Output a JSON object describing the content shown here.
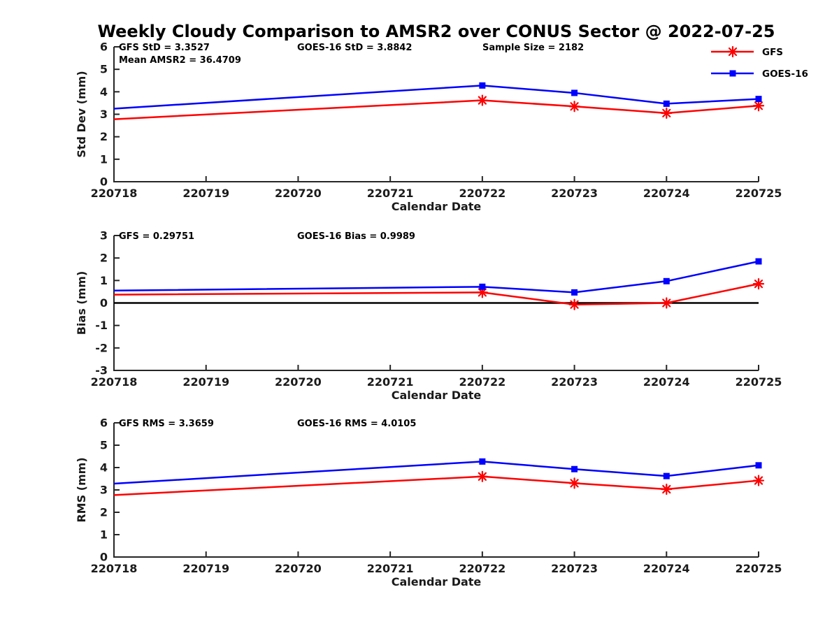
{
  "title": "Weekly Cloudy Comparison to AMSR2 over CONUS Sector @ 2022-07-25",
  "colors": {
    "gfs": "#ff0000",
    "goes16": "#0000ff",
    "axis": "#262626",
    "tick_text": "#1a1a1a",
    "annotation_text": "#000000",
    "zero_line": "#000000",
    "background": "#ffffff"
  },
  "legend": {
    "items": [
      {
        "label": "GFS",
        "color": "#ff0000",
        "marker": "asterisk"
      },
      {
        "label": "GOES-16",
        "color": "#0000ff",
        "marker": "square"
      }
    ]
  },
  "x_axis": {
    "label": "Calendar Date",
    "tick_labels": [
      "220718",
      "220719",
      "220720",
      "220721",
      "220722",
      "220723",
      "220724",
      "220725"
    ]
  },
  "chart_data": [
    {
      "type": "line",
      "ylabel": "Std Dev (mm)",
      "xlabel": "Calendar Date",
      "ylim": [
        0,
        6
      ],
      "yticks": [
        0,
        1,
        2,
        3,
        4,
        5,
        6
      ],
      "x": [
        "220718",
        "220722",
        "220723",
        "220724",
        "220725"
      ],
      "series": [
        {
          "name": "GFS",
          "color": "#ff0000",
          "marker": "asterisk",
          "values": [
            2.78,
            3.62,
            3.35,
            3.05,
            3.38
          ]
        },
        {
          "name": "GOES-16",
          "color": "#0000ff",
          "marker": "square",
          "values": [
            3.25,
            4.28,
            3.95,
            3.47,
            3.68
          ]
        }
      ],
      "annotations": [
        {
          "text": "GFS StD = 3.3527",
          "col": 0,
          "row": 0
        },
        {
          "text": "Mean AMSR2 = 36.4709",
          "col": 0,
          "row": 1
        },
        {
          "text": "GOES-16 StD = 3.8842",
          "col": 1,
          "row": 0
        },
        {
          "text": "Sample Size = 2182",
          "col": 2,
          "row": 0
        }
      ],
      "zero_line": false,
      "show_legend": true
    },
    {
      "type": "line",
      "ylabel": "Bias (mm)",
      "xlabel": "Calendar Date",
      "ylim": [
        -3,
        3
      ],
      "yticks": [
        -3,
        -2,
        -1,
        0,
        1,
        2,
        3
      ],
      "x": [
        "220718",
        "220722",
        "220723",
        "220724",
        "220725"
      ],
      "series": [
        {
          "name": "GFS",
          "color": "#ff0000",
          "marker": "asterisk",
          "values": [
            0.37,
            0.47,
            -0.07,
            0.0,
            0.85
          ]
        },
        {
          "name": "GOES-16",
          "color": "#0000ff",
          "marker": "square",
          "values": [
            0.55,
            0.72,
            0.47,
            0.97,
            1.85
          ]
        }
      ],
      "annotations": [
        {
          "text": "GFS = 0.29751",
          "col": 0,
          "row": 0
        },
        {
          "text": "GOES-16 Bias  = 0.9989",
          "col": 1,
          "row": 0
        }
      ],
      "zero_line": true,
      "show_legend": false
    },
    {
      "type": "line",
      "ylabel": "RMS (mm)",
      "xlabel": "Calendar Date",
      "ylim": [
        0,
        6
      ],
      "yticks": [
        0,
        1,
        2,
        3,
        4,
        5,
        6
      ],
      "x": [
        "220718",
        "220722",
        "220723",
        "220724",
        "220725"
      ],
      "series": [
        {
          "name": "GFS",
          "color": "#ff0000",
          "marker": "asterisk",
          "values": [
            2.77,
            3.6,
            3.3,
            3.03,
            3.42
          ]
        },
        {
          "name": "GOES-16",
          "color": "#0000ff",
          "marker": "square",
          "values": [
            3.28,
            4.27,
            3.93,
            3.62,
            4.1
          ]
        }
      ],
      "annotations": [
        {
          "text": "GFS RMS = 3.3659",
          "col": 0,
          "row": 0
        },
        {
          "text": "GOES-16 RMS = 4.0105",
          "col": 1,
          "row": 0
        }
      ],
      "zero_line": false,
      "show_legend": false
    }
  ]
}
